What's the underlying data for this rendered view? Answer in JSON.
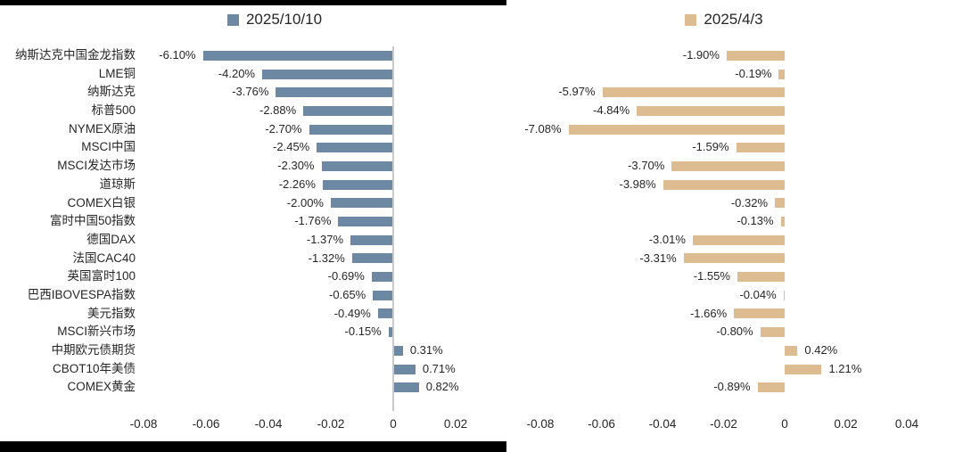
{
  "chart_data": [
    {
      "type": "bar",
      "orientation": "horizontal",
      "legend": "2025/10/10",
      "legend_position": "top",
      "bar_color": "#6c88a2",
      "grid": false,
      "zero_line": true,
      "categories": [
        "纳斯达克中国金龙指数",
        "LME铜",
        "纳斯达克",
        "标普500",
        "NYMEX原油",
        "MSCI中国",
        "MSCI发达市场",
        "道琼斯",
        "COMEX白银",
        "富时中国50指数",
        "德国DAX",
        "法国CAC40",
        "英国富时100",
        "巴西IBOVESPA指数",
        "美元指数",
        "MSCI新兴市场",
        "中期欧元债期货",
        "CBOT10年美债",
        "COMEX黄金"
      ],
      "values": [
        -0.061,
        -0.042,
        -0.0376,
        -0.0288,
        -0.027,
        -0.0245,
        -0.023,
        -0.0226,
        -0.02,
        -0.0176,
        -0.0137,
        -0.0132,
        -0.0069,
        -0.0065,
        -0.0049,
        -0.0015,
        0.0031,
        0.0071,
        0.0082
      ],
      "data_labels": [
        "-6.10%",
        "-4.20%",
        "-3.76%",
        "-2.88%",
        "-2.70%",
        "-2.45%",
        "-2.30%",
        "-2.26%",
        "-2.00%",
        "-1.76%",
        "-1.37%",
        "-1.32%",
        "-0.69%",
        "-0.65%",
        "-0.49%",
        "-0.15%",
        "0.31%",
        "0.71%",
        "0.82%"
      ],
      "x_ticks": [
        -0.08,
        -0.06,
        -0.04,
        -0.02,
        0,
        0.02
      ],
      "x_tick_labels": [
        "-0.08",
        "-0.06",
        "-0.04",
        "-0.02",
        "0",
        "0.02"
      ],
      "xlim": [
        -0.08,
        0.02
      ]
    },
    {
      "type": "bar",
      "orientation": "horizontal",
      "legend": "2025/4/3",
      "legend_position": "top",
      "bar_color": "#dcbc90",
      "grid": false,
      "zero_line": false,
      "categories": [
        "纳斯达克中国金龙指数",
        "LME铜",
        "纳斯达克",
        "标普500",
        "NYMEX原油",
        "MSCI中国",
        "MSCI发达市场",
        "道琼斯",
        "COMEX白银",
        "富时中国50指数",
        "德国DAX",
        "法国CAC40",
        "英国富时100",
        "巴西IBOVESPA指数",
        "美元指数",
        "MSCI新兴市场",
        "中期欧元债期货",
        "CBOT10年美债",
        "COMEX黄金"
      ],
      "values": [
        -0.019,
        -0.0019,
        -0.0597,
        -0.0484,
        -0.0708,
        -0.0159,
        -0.037,
        -0.0398,
        -0.0032,
        -0.0013,
        -0.0301,
        -0.0331,
        -0.0155,
        -0.0004,
        -0.0166,
        -0.008,
        0.0042,
        0.0121,
        -0.0089
      ],
      "data_labels": [
        "-1.90%",
        "-0.19%",
        "-5.97%",
        "-4.84%",
        "-7.08%",
        "-1.59%",
        "-3.70%",
        "-3.98%",
        "-0.32%",
        "-0.13%",
        "-3.01%",
        "-3.31%",
        "-1.55%",
        "-0.04%",
        "-1.66%",
        "-0.80%",
        "0.42%",
        "1.21%",
        "-0.89%"
      ],
      "x_ticks": [
        -0.08,
        -0.06,
        -0.04,
        -0.02,
        0,
        0.02,
        0.04
      ],
      "x_tick_labels": [
        "-0.08",
        "-0.06",
        "-0.04",
        "-0.02",
        "0",
        "0.02",
        "0.04"
      ],
      "xlim": [
        -0.08,
        0.04
      ]
    }
  ]
}
